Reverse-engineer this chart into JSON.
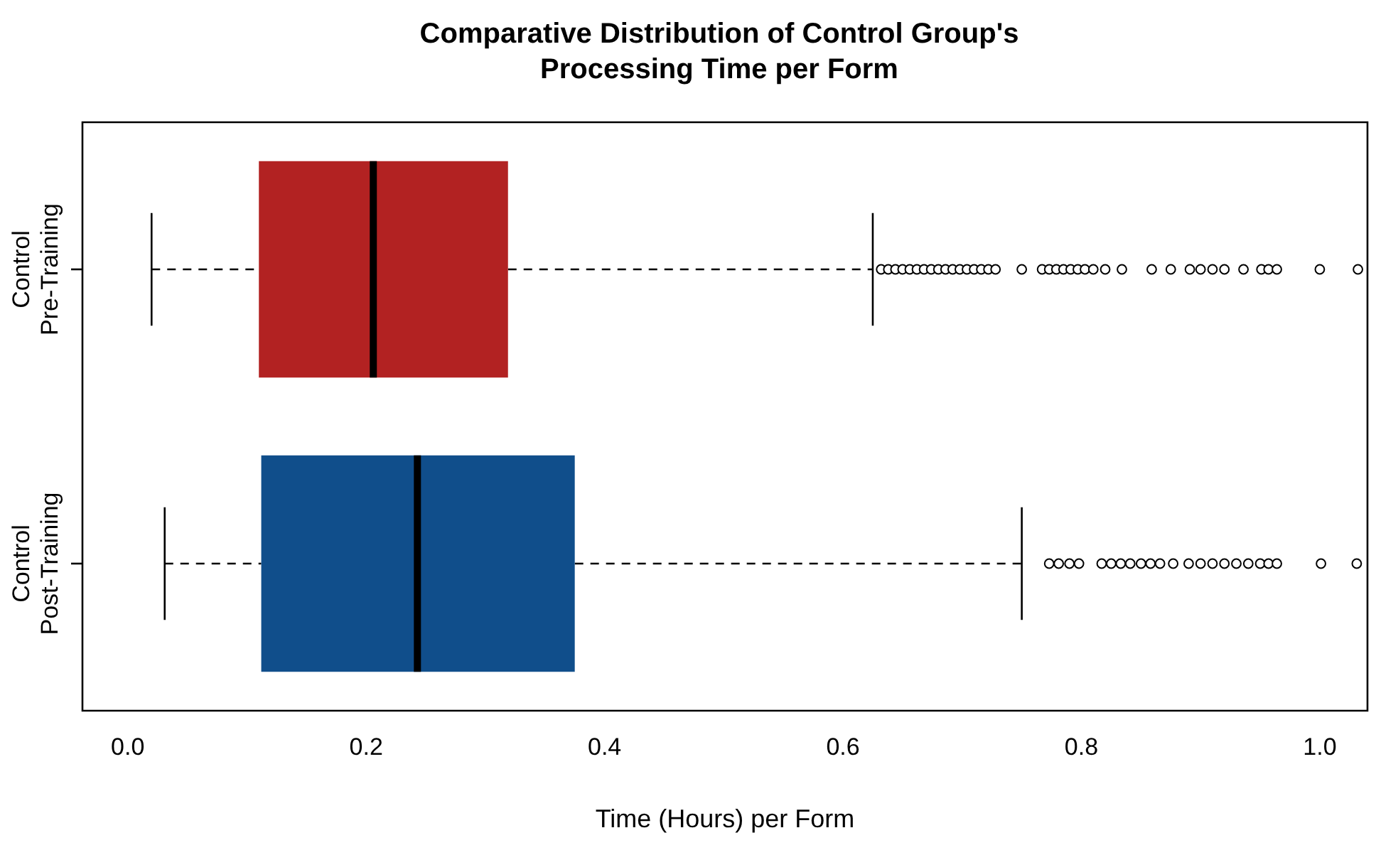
{
  "chart_data": {
    "type": "box",
    "orientation": "horizontal",
    "title": "Comparative Distribution of Control Group's\nProcessing Time per Form",
    "xlabel": "Time (Hours) per Form",
    "categories": [
      "Control\nPre-Training",
      "Control\nPost-Training"
    ],
    "colors": [
      "#b22222",
      "#104e8b"
    ],
    "boxes": [
      {
        "low": 0.02,
        "q1": 0.11,
        "median": 0.206,
        "q3": 0.319,
        "high": 0.625,
        "outliers": [
          0.632,
          0.638,
          0.644,
          0.65,
          0.656,
          0.662,
          0.668,
          0.674,
          0.68,
          0.686,
          0.692,
          0.698,
          0.704,
          0.71,
          0.716,
          0.722,
          0.728,
          0.75,
          0.767,
          0.773,
          0.779,
          0.785,
          0.791,
          0.797,
          0.803,
          0.81,
          0.82,
          0.834,
          0.859,
          0.875,
          0.891,
          0.9,
          0.91,
          0.92,
          0.936,
          0.951,
          0.957,
          0.964,
          1.0,
          1.032
        ]
      },
      {
        "low": 0.031,
        "q1": 0.112,
        "median": 0.243,
        "q3": 0.375,
        "high": 0.75,
        "outliers": [
          0.773,
          0.781,
          0.79,
          0.798,
          0.817,
          0.825,
          0.833,
          0.841,
          0.85,
          0.858,
          0.866,
          0.877,
          0.89,
          0.9,
          0.91,
          0.92,
          0.93,
          0.94,
          0.95,
          0.957,
          0.964,
          1.001,
          1.031
        ]
      }
    ],
    "xlim": [
      -0.038,
      1.04
    ],
    "xticks": [
      {
        "value": 0,
        "label": "0.0"
      },
      {
        "value": 0.2,
        "label": "0.2"
      },
      {
        "value": 0.4,
        "label": "0.4"
      },
      {
        "value": 0.6,
        "label": "0.6"
      },
      {
        "value": 0.8,
        "label": "0.8"
      },
      {
        "value": 1,
        "label": "1.0"
      }
    ],
    "grid": false,
    "legend": false,
    "marker": "circle"
  }
}
